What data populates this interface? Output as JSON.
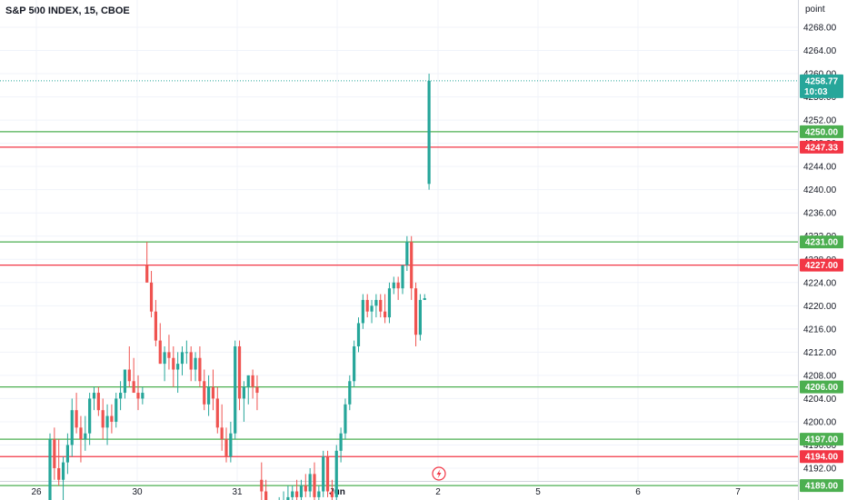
{
  "header": {
    "title": "S&P 500 INDEX, 15, CBOE"
  },
  "price_axis": {
    "unit_label": "point"
  },
  "colors": {
    "up": "#26a69a",
    "down": "#ef5350",
    "support": "#4caf50",
    "resistance": "#f23645",
    "last": "#26a69a",
    "grid": "#f0f3fa"
  },
  "chart_data": {
    "type": "candlestick",
    "title": "S&P 500 INDEX, 15, CBOE",
    "ylim": [
      4187,
      4272
    ],
    "y_ticks": [
      "4268.00",
      "4264.00",
      "4260.00",
      "4256.00",
      "4252.00",
      "4248.00",
      "4244.00",
      "4240.00",
      "4236.00",
      "4232.00",
      "4228.00",
      "4224.00",
      "4220.00",
      "4216.00",
      "4212.00",
      "4208.00",
      "4204.00",
      "4200.00",
      "4196.00",
      "4192.00"
    ],
    "x_ticks": [
      "26",
      "30",
      "31",
      "Jun",
      "2",
      "5",
      "6",
      "7"
    ],
    "last_price": {
      "value": "4258.77",
      "countdown": "10:03"
    },
    "levels": [
      {
        "value": 4250.0,
        "label": "4250.00",
        "kind": "support"
      },
      {
        "value": 4247.33,
        "label": "4247.33",
        "kind": "resistance"
      },
      {
        "value": 4231.0,
        "label": "4231.00",
        "kind": "support"
      },
      {
        "value": 4227.0,
        "label": "4227.00",
        "kind": "resistance"
      },
      {
        "value": 4206.0,
        "label": "4206.00",
        "kind": "support"
      },
      {
        "value": 4197.0,
        "label": "4197.00",
        "kind": "support"
      },
      {
        "value": 4194.0,
        "label": "4194.00",
        "kind": "resistance"
      },
      {
        "value": 4189.0,
        "label": "4189.00",
        "kind": "support"
      }
    ],
    "candles": [
      [
        4185,
        4198,
        4184,
        4197
      ],
      [
        4197,
        4199,
        4190,
        4192
      ],
      [
        4192,
        4197,
        4189,
        4190
      ],
      [
        4190,
        4194,
        4186,
        4193
      ],
      [
        4193,
        4198,
        4191,
        4196
      ],
      [
        4196,
        4204,
        4194,
        4202
      ],
      [
        4202,
        4205,
        4198,
        4199
      ],
      [
        4199,
        4201,
        4193,
        4197
      ],
      [
        4197,
        4201,
        4195,
        4198
      ],
      [
        4198,
        4205,
        4196,
        4204
      ],
      [
        4204,
        4206,
        4202,
        4205
      ],
      [
        4205,
        4206,
        4201,
        4202
      ],
      [
        4202,
        4204,
        4197,
        4199
      ],
      [
        4199,
        4203,
        4196,
        4201
      ],
      [
        4201,
        4203,
        4198,
        4200
      ],
      [
        4200,
        4205,
        4199,
        4204
      ],
      [
        4204,
        4207,
        4202,
        4205
      ],
      [
        4205,
        4209,
        4204,
        4209
      ],
      [
        4209,
        4213,
        4206,
        4207
      ],
      [
        4207,
        4211,
        4205,
        4205
      ],
      [
        4205,
        4208,
        4202,
        4204
      ],
      [
        4204,
        4206,
        4203,
        4205
      ],
      [
        4227,
        4231,
        4224,
        4224
      ],
      [
        4224,
        4226,
        4218,
        4219
      ],
      [
        4219,
        4221,
        4213,
        4214
      ],
      [
        4214,
        4217,
        4210,
        4210
      ],
      [
        4210,
        4213,
        4207,
        4212
      ],
      [
        4212,
        4215,
        4209,
        4211
      ],
      [
        4211,
        4213,
        4206,
        4209
      ],
      [
        4209,
        4212,
        4205,
        4210
      ],
      [
        4210,
        4213,
        4208,
        4212
      ],
      [
        4212,
        4214,
        4210,
        4212
      ],
      [
        4212,
        4213,
        4207,
        4209
      ],
      [
        4209,
        4212,
        4207,
        4211
      ],
      [
        4211,
        4213,
        4206,
        4207
      ],
      [
        4207,
        4209,
        4202,
        4203
      ],
      [
        4203,
        4208,
        4201,
        4206
      ],
      [
        4206,
        4209,
        4202,
        4204
      ],
      [
        4204,
        4206,
        4198,
        4199
      ],
      [
        4199,
        4203,
        4195,
        4197
      ],
      [
        4197,
        4199,
        4193,
        4194
      ],
      [
        4194,
        4200,
        4193,
        4198
      ],
      [
        4198,
        4214,
        4197,
        4213
      ],
      [
        4213,
        4214,
        4202,
        4204
      ],
      [
        4204,
        4207,
        4200,
        4206
      ],
      [
        4206,
        4208,
        4203,
        4208
      ],
      [
        4208,
        4209,
        4204,
        4206
      ],
      [
        4206,
        4208,
        4202,
        4205
      ],
      [
        4190,
        4193,
        4186,
        4188
      ],
      [
        4188,
        4190,
        4185,
        4186
      ],
      [
        4184,
        4186,
        4182,
        4183
      ],
      [
        4183,
        4185,
        4181,
        4184
      ],
      [
        4184,
        4187,
        4182,
        4185
      ],
      [
        4185,
        4188,
        4183,
        4186
      ],
      [
        4186,
        4189,
        4184,
        4187
      ],
      [
        4187,
        4189,
        4185,
        4188
      ],
      [
        4188,
        4190,
        4186,
        4187
      ],
      [
        4187,
        4190,
        4186,
        4189
      ],
      [
        4189,
        4191,
        4187,
        4188
      ],
      [
        4188,
        4192,
        4187,
        4191
      ],
      [
        4191,
        4193,
        4186,
        4187
      ],
      [
        4187,
        4189,
        4185,
        4188
      ],
      [
        4188,
        4195,
        4187,
        4194
      ],
      [
        4194,
        4195,
        4187,
        4188
      ],
      [
        4188,
        4190,
        4186,
        4187
      ],
      [
        4187,
        4196,
        4186,
        4195
      ],
      [
        4195,
        4199,
        4193,
        4198
      ],
      [
        4198,
        4204,
        4197,
        4203
      ],
      [
        4203,
        4208,
        4202,
        4207
      ],
      [
        4207,
        4214,
        4206,
        4213
      ],
      [
        4213,
        4218,
        4212,
        4217
      ],
      [
        4217,
        4222,
        4216,
        4221
      ],
      [
        4221,
        4222,
        4218,
        4219
      ],
      [
        4219,
        4221,
        4217,
        4220
      ],
      [
        4220,
        4222,
        4218,
        4221
      ],
      [
        4221,
        4222,
        4218,
        4219
      ],
      [
        4219,
        4222,
        4217,
        4218
      ],
      [
        4218,
        4224,
        4217,
        4223
      ],
      [
        4223,
        4225,
        4222,
        4224
      ],
      [
        4224,
        4225,
        4221,
        4223
      ],
      [
        4223,
        4227,
        4222,
        4227
      ],
      [
        4227,
        4232,
        4226,
        4231
      ],
      [
        4231,
        4232,
        4221,
        4223
      ],
      [
        4223,
        4224,
        4213,
        4215
      ],
      [
        4215,
        4222,
        4214,
        4221
      ],
      [
        4221,
        4222,
        4221,
        4221.3
      ],
      [
        4241,
        4260,
        4240,
        4258.77
      ]
    ]
  }
}
